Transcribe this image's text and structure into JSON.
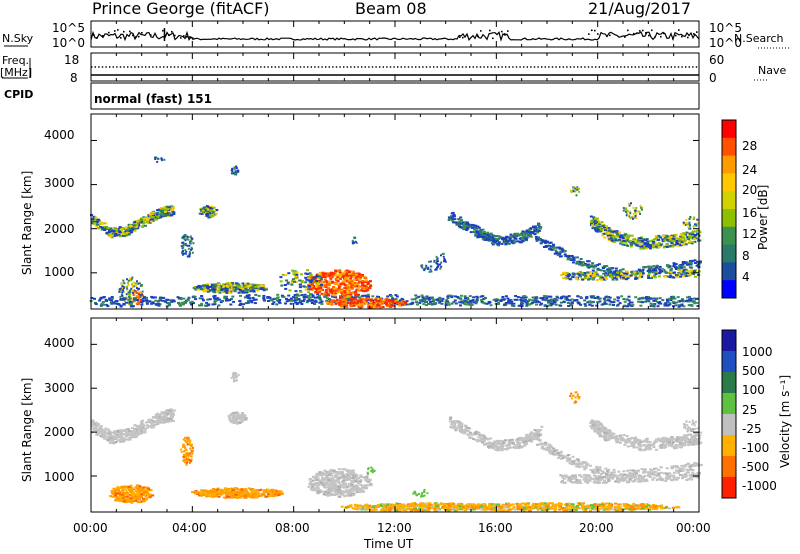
{
  "header": {
    "station": "Prince George (fitACF)",
    "beam": "Beam 08",
    "date": "21/Aug/2017"
  },
  "left_labels": {
    "nsky": "N.Sky",
    "freq": "Freq.",
    "freq_unit": "[MHz]",
    "cpid": "CPID"
  },
  "right_labels": {
    "nsearch": "N.Search",
    "nave": "Nave"
  },
  "cpid_text": "normal (fast) 151",
  "chart_data": [
    {
      "type": "line",
      "panel": "noise",
      "left_ticks": [
        "10^5",
        "10^0"
      ],
      "right_ticks": [
        "10^5",
        "10^0"
      ],
      "ylim": [
        0,
        5
      ],
      "series": [
        {
          "name": "N.Sky",
          "style": "solid"
        },
        {
          "name": "N.Search",
          "style": "dotted"
        }
      ]
    },
    {
      "type": "line",
      "panel": "frequency",
      "left_ticks": [
        "18",
        "8"
      ],
      "right_ticks": [
        "60",
        "0"
      ],
      "series": [
        {
          "name": "Freq.",
          "style": "solid"
        },
        {
          "name": "Nave",
          "style": "dotted"
        }
      ]
    },
    {
      "type": "heatmap",
      "panel": "power",
      "ylabel": "Slant Range [km]",
      "yticks": [
        "4000",
        "3000",
        "2000",
        "1000"
      ],
      "ylim": [
        180,
        4600
      ],
      "xlim": [
        0,
        24
      ],
      "colorbar": {
        "label": "Power [dB]",
        "ticks": [
          "28",
          "24",
          "20",
          "16",
          "12",
          "8",
          "4"
        ],
        "colors": [
          "#ff0000",
          "#ff5000",
          "#ff9a00",
          "#ffc800",
          "#d2d200",
          "#8cc000",
          "#3c9050",
          "#2a7a6a",
          "#1c4ea0",
          "#0000ff"
        ]
      }
    },
    {
      "type": "heatmap",
      "panel": "velocity",
      "ylabel": "Slant Range [km]",
      "yticks": [
        "4000",
        "3000",
        "2000",
        "1000"
      ],
      "ylim": [
        180,
        4600
      ],
      "xlim": [
        0,
        24
      ],
      "xlabel": "Time UT",
      "xticks": [
        "00:00",
        "04:00",
        "08:00",
        "12:00",
        "16:00",
        "20:00",
        "00:00"
      ],
      "colorbar": {
        "label": "Velocity [m s⁻¹]",
        "ticks": [
          "1000",
          "500",
          "100",
          "25",
          "-25",
          "-100",
          "-500",
          "-1000"
        ],
        "colors": [
          "#1a1aa0",
          "#2050c0",
          "#2a7a4a",
          "#60c040",
          "#c0c0c0",
          "#ffb000",
          "#ff7000",
          "#ff2000"
        ]
      }
    }
  ]
}
